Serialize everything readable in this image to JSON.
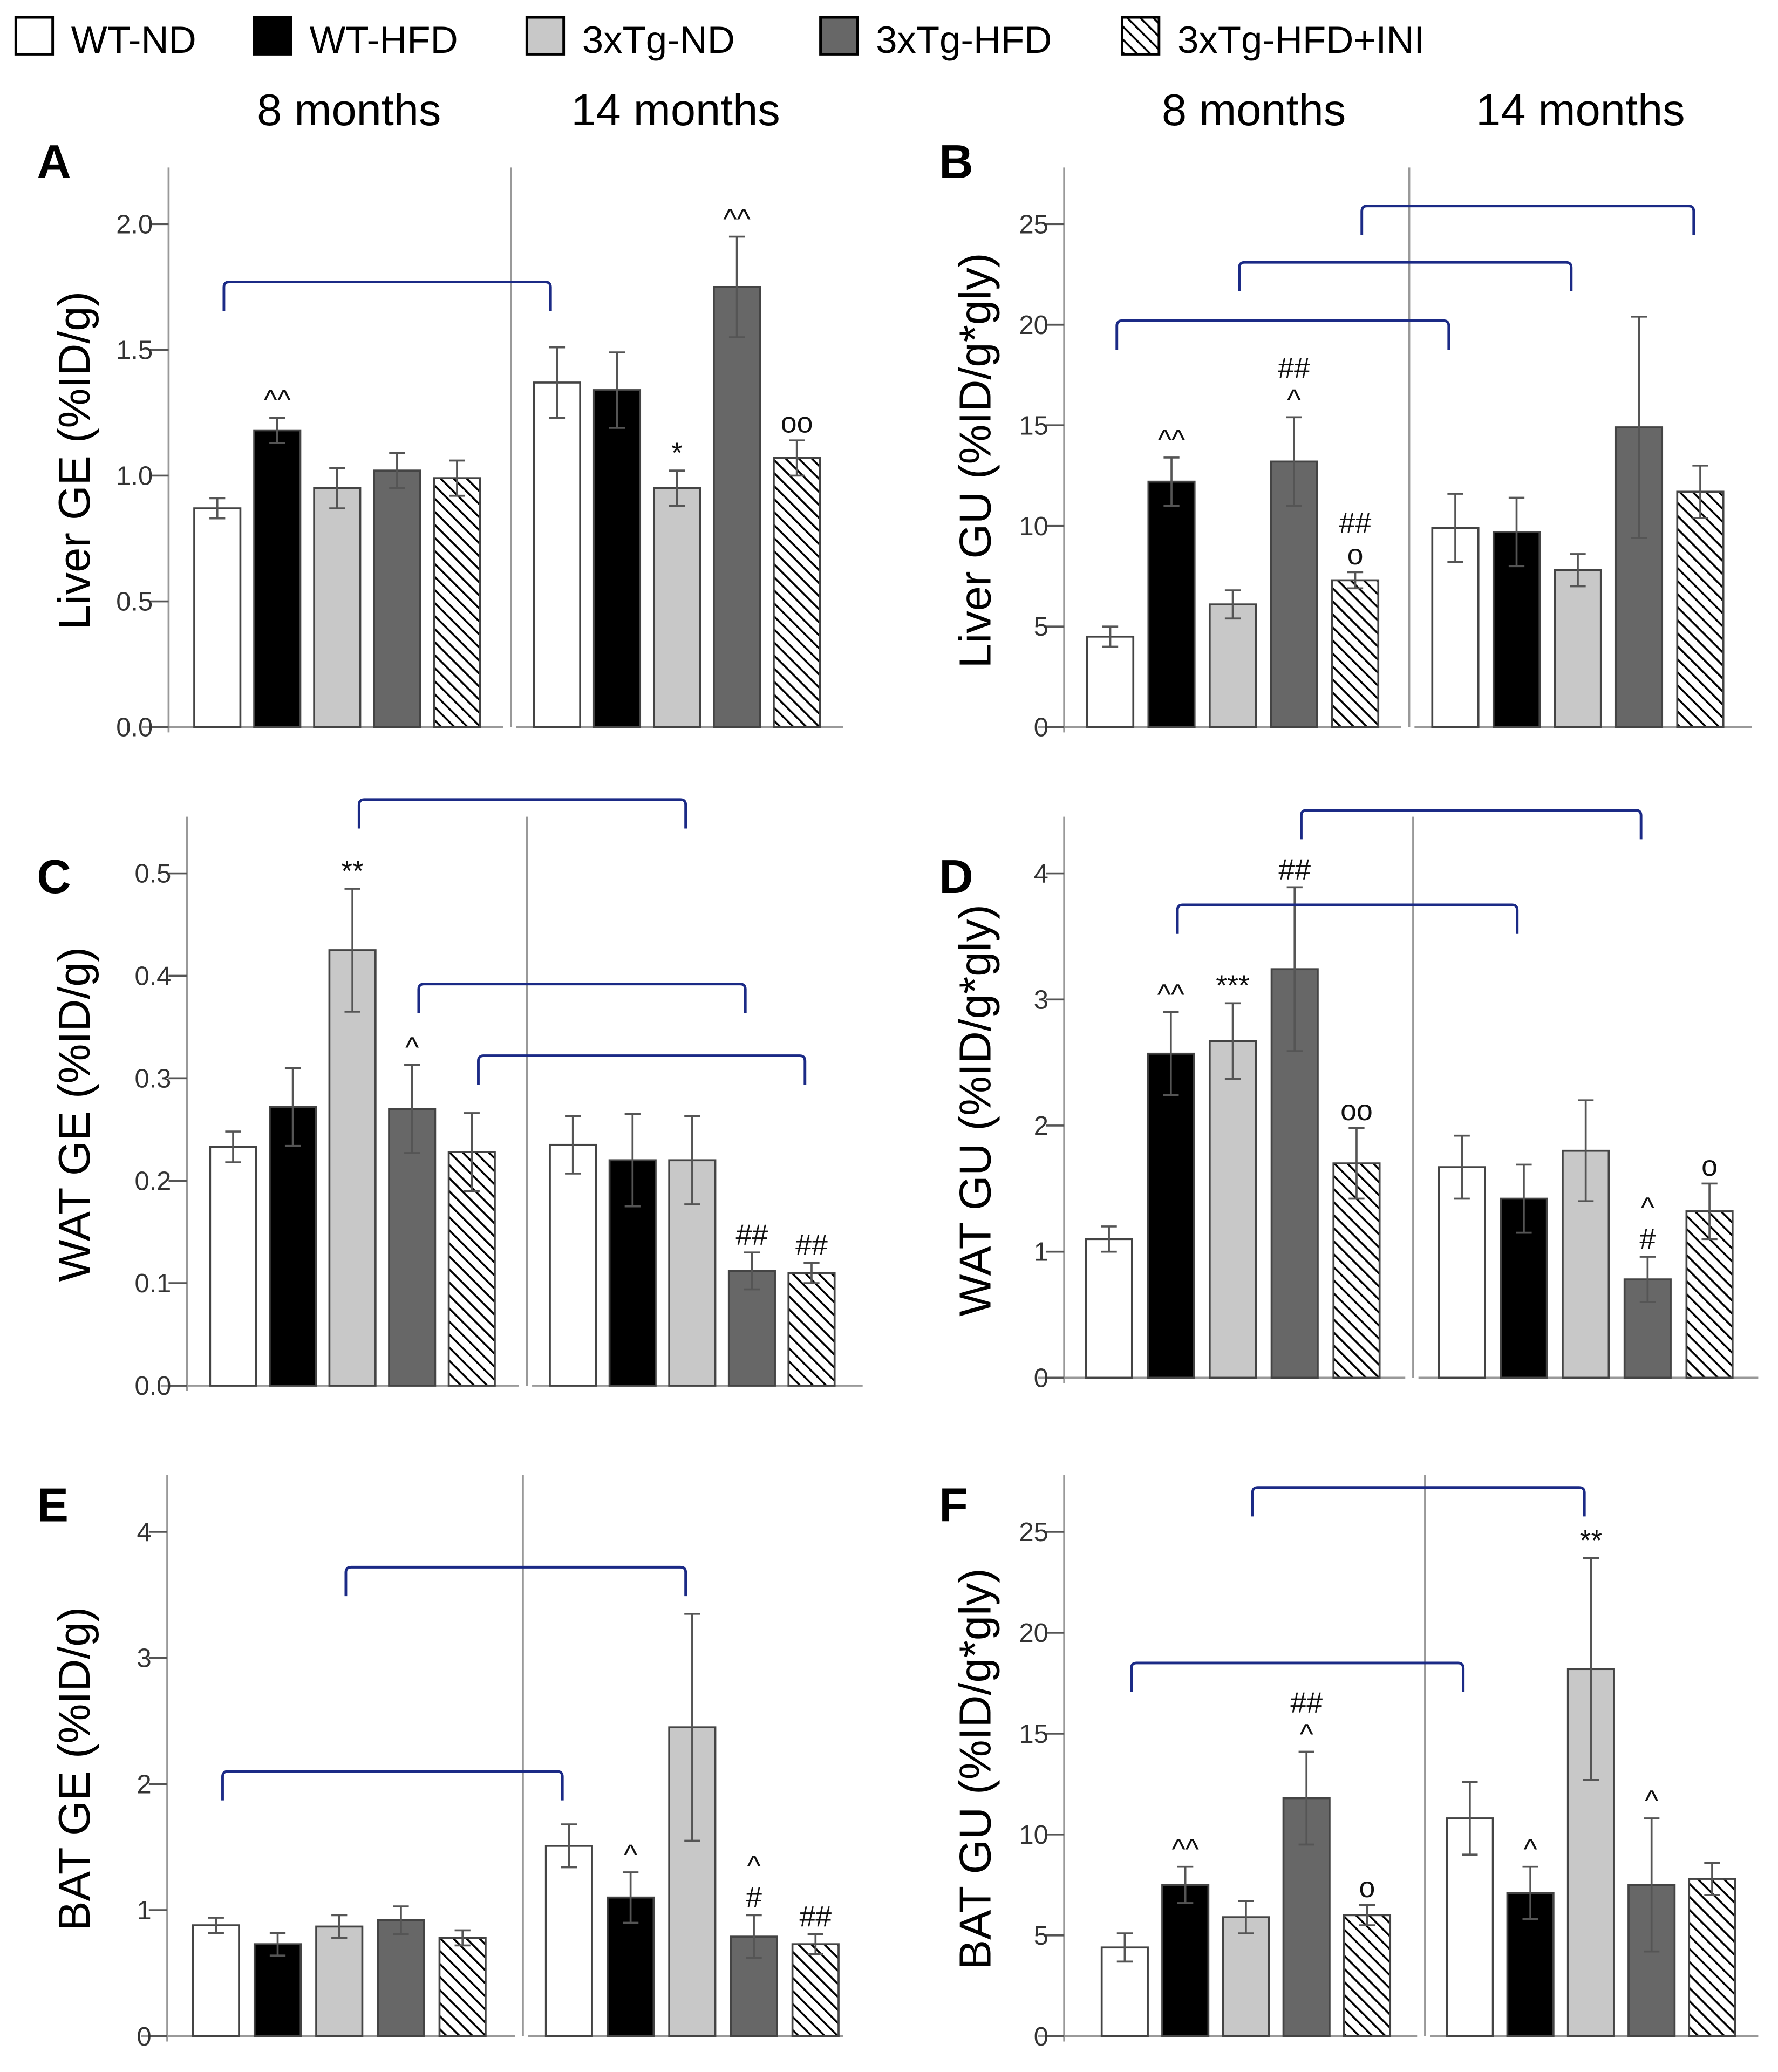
{
  "legend": [
    {
      "label": "WT-ND",
      "fill": "#ffffff"
    },
    {
      "label": "WT-HFD",
      "fill": "#000000"
    },
    {
      "label": "3xTg-ND",
      "fill": "#c8c8c8"
    },
    {
      "label": "3xTg-HFD",
      "fill": "#676767"
    },
    {
      "label": "3xTg-HFD+INI",
      "fill": "hatch"
    }
  ],
  "periods": [
    "8 months",
    "14 months"
  ],
  "colors": {
    "bracket": "#1b2a86",
    "axis": "#999999",
    "bar_edge": "#444444"
  },
  "chart_data": [
    {
      "panel": "A",
      "type": "bar",
      "ylabel": "Liver GE (%ID/g)",
      "ylim": [
        0,
        2.0
      ],
      "yticks": [
        "0.0",
        "0.5",
        "1.0",
        "1.5",
        "2.0"
      ],
      "categories": [
        "WT-ND",
        "WT-HFD",
        "3xTg-ND",
        "3xTg-HFD",
        "3xTg-HFD+INI"
      ],
      "series": [
        {
          "name": "8 months",
          "values": [
            0.87,
            1.18,
            0.95,
            1.02,
            0.99
          ],
          "errors": [
            0.04,
            0.05,
            0.08,
            0.07,
            0.07
          ],
          "annotations": [
            "",
            "^^",
            "",
            "",
            ""
          ]
        },
        {
          "name": "14 months",
          "values": [
            1.37,
            1.34,
            0.95,
            1.75,
            1.07
          ],
          "errors": [
            0.14,
            0.15,
            0.07,
            0.2,
            0.07
          ],
          "annotations": [
            "",
            "",
            "*",
            "^^",
            "oo"
          ]
        }
      ],
      "brackets": [
        {
          "group": 0,
          "y": 1.77
        }
      ]
    },
    {
      "panel": "B",
      "type": "bar",
      "ylabel": "Liver GU (%ID/g*gly)",
      "ylim": [
        0,
        25
      ],
      "yticks": [
        "0",
        "5",
        "10",
        "15",
        "20",
        "25"
      ],
      "categories": [
        "WT-ND",
        "WT-HFD",
        "3xTg-ND",
        "3xTg-HFD",
        "3xTg-HFD+INI"
      ],
      "series": [
        {
          "name": "8 months",
          "values": [
            4.5,
            12.2,
            6.1,
            13.2,
            7.3
          ],
          "errors": [
            0.5,
            1.2,
            0.7,
            2.2,
            0.4
          ],
          "annotations": [
            "",
            "^^",
            "",
            "##\n^",
            "##\no"
          ]
        },
        {
          "name": "14 months",
          "values": [
            9.9,
            9.7,
            7.8,
            14.9,
            11.7
          ],
          "errors": [
            1.7,
            1.7,
            0.8,
            5.5,
            1.3
          ],
          "annotations": [
            "",
            "",
            "",
            "",
            ""
          ]
        }
      ],
      "brackets": [
        {
          "group": 0,
          "y": 20.2
        },
        {
          "group": 2,
          "y": 23.1
        },
        {
          "group": 4,
          "y": 25.9
        }
      ]
    },
    {
      "panel": "C",
      "type": "bar",
      "ylabel": "WAT GE (%ID/g)",
      "ylim": [
        0,
        0.5
      ],
      "yticks": [
        "0.0",
        "0.1",
        "0.2",
        "0.3",
        "0.4",
        "0.5"
      ],
      "categories": [
        "WT-ND",
        "WT-HFD",
        "3xTg-ND",
        "3xTg-HFD",
        "3xTg-HFD+INI"
      ],
      "series": [
        {
          "name": "8 months",
          "values": [
            0.233,
            0.272,
            0.425,
            0.27,
            0.228
          ],
          "errors": [
            0.015,
            0.038,
            0.06,
            0.043,
            0.038
          ],
          "annotations": [
            "",
            "",
            "**",
            "^",
            ""
          ]
        },
        {
          "name": "14 months",
          "values": [
            0.235,
            0.22,
            0.22,
            0.112,
            0.11
          ],
          "errors": [
            0.028,
            0.045,
            0.043,
            0.018,
            0.01
          ],
          "annotations": [
            "",
            "",
            "",
            "##",
            "##"
          ]
        }
      ],
      "brackets": [
        {
          "group": 2,
          "y": 0.572
        },
        {
          "group": 3,
          "y": 0.392
        },
        {
          "group": 4,
          "y": 0.322
        }
      ]
    },
    {
      "panel": "D",
      "type": "bar",
      "ylabel": "WAT GU (%ID/g*gly)",
      "ylim": [
        0,
        4
      ],
      "yticks": [
        "0",
        "1",
        "2",
        "3",
        "4"
      ],
      "categories": [
        "WT-ND",
        "WT-HFD",
        "3xTg-ND",
        "3xTg-HFD",
        "3xTg-HFD+INI"
      ],
      "series": [
        {
          "name": "8 months",
          "values": [
            1.1,
            2.57,
            2.67,
            3.24,
            1.7
          ],
          "errors": [
            0.1,
            0.33,
            0.3,
            0.65,
            0.28
          ],
          "annotations": [
            "",
            "^^",
            "***",
            "##",
            "oo"
          ]
        },
        {
          "name": "14 months",
          "values": [
            1.67,
            1.42,
            1.8,
            0.78,
            1.32
          ],
          "errors": [
            0.25,
            0.27,
            0.4,
            0.18,
            0.22
          ],
          "annotations": [
            "",
            "",
            "",
            "^\n#",
            "o"
          ]
        }
      ],
      "brackets": [
        {
          "group": 1,
          "y": 3.75
        },
        {
          "group": 3,
          "y": 4.5
        }
      ]
    },
    {
      "panel": "E",
      "type": "bar",
      "ylabel": "BAT GE (%ID/g)",
      "ylim": [
        0,
        4
      ],
      "yticks": [
        "0",
        "1",
        "2",
        "3",
        "4"
      ],
      "categories": [
        "WT-ND",
        "WT-HFD",
        "3xTg-ND",
        "3xTg-HFD",
        "3xTg-HFD+INI"
      ],
      "series": [
        {
          "name": "8 months",
          "values": [
            0.88,
            0.73,
            0.87,
            0.92,
            0.78
          ],
          "errors": [
            0.06,
            0.09,
            0.09,
            0.11,
            0.06
          ],
          "annotations": [
            "",
            "",
            "",
            "",
            ""
          ]
        },
        {
          "name": "14 months",
          "values": [
            1.51,
            1.1,
            2.45,
            0.79,
            0.73
          ],
          "errors": [
            0.17,
            0.2,
            0.9,
            0.17,
            0.08
          ],
          "annotations": [
            "",
            "^",
            "",
            "^\n#",
            "##"
          ]
        }
      ],
      "brackets": [
        {
          "group": 0,
          "y": 2.1
        },
        {
          "group": 2,
          "y": 3.72
        }
      ]
    },
    {
      "panel": "F",
      "type": "bar",
      "ylabel": "BAT GU (%ID/g*gly)",
      "ylim": [
        0,
        25
      ],
      "yticks": [
        "0",
        "5",
        "10",
        "15",
        "20",
        "25"
      ],
      "categories": [
        "WT-ND",
        "WT-HFD",
        "3xTg-ND",
        "3xTg-HFD",
        "3xTg-HFD+INI"
      ],
      "series": [
        {
          "name": "8 months",
          "values": [
            4.4,
            7.5,
            5.9,
            11.8,
            6.0
          ],
          "errors": [
            0.7,
            0.9,
            0.8,
            2.3,
            0.5
          ],
          "annotations": [
            "",
            "^^",
            "",
            "##\n^",
            "o"
          ]
        },
        {
          "name": "14 months",
          "values": [
            10.8,
            7.1,
            18.2,
            7.5,
            7.8
          ],
          "errors": [
            1.8,
            1.3,
            5.5,
            3.3,
            0.8
          ],
          "annotations": [
            "",
            "^",
            "**",
            "^",
            ""
          ]
        }
      ],
      "brackets": [
        {
          "group": 0,
          "y": 18.5
        },
        {
          "group": 2,
          "y": 27.2
        }
      ]
    }
  ]
}
